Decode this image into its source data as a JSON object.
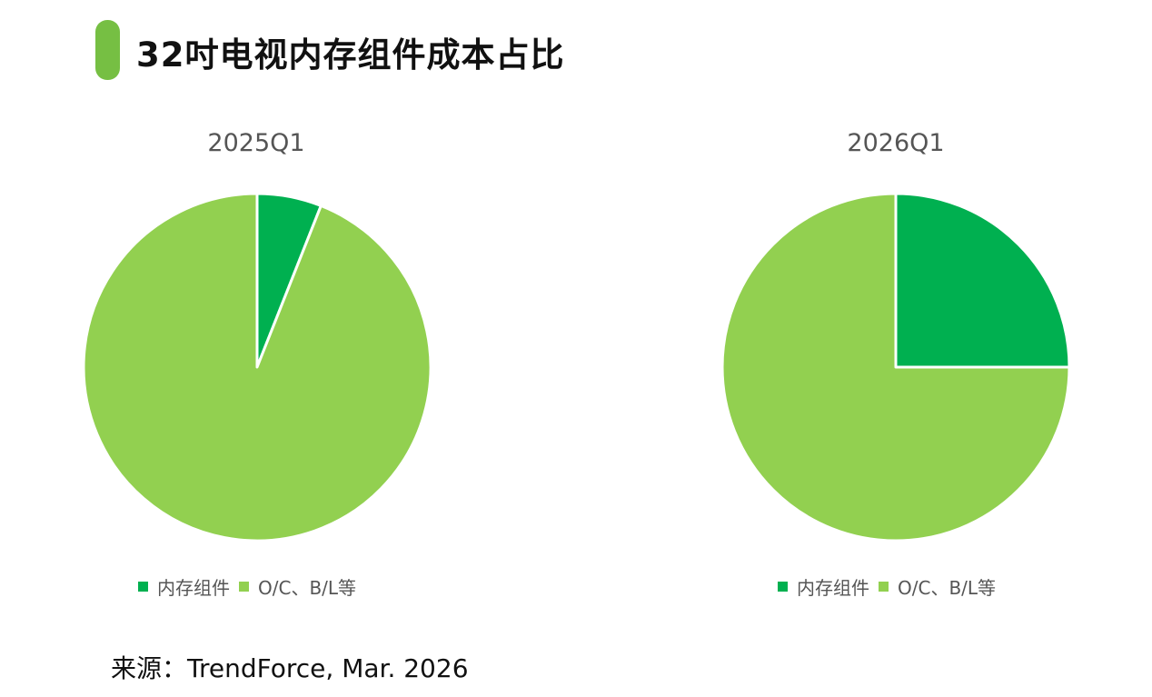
{
  "title": "32吋电视内存组件成本占比",
  "source": "来源：TrendForce, Mar. 2026",
  "colors": {
    "accent": "#76bf43",
    "memory": "#00b050",
    "other": "#92d050"
  },
  "legend": [
    {
      "label": "内存组件",
      "color": "#00b050"
    },
    {
      "label": "O/C、B/L等",
      "color": "#92d050"
    }
  ],
  "chart_data": [
    {
      "type": "pie",
      "title": "2025Q1",
      "categories": [
        "内存组件",
        "O/C、B/L等"
      ],
      "values": [
        6,
        94
      ],
      "unit": "%",
      "legend_position": "bottom"
    },
    {
      "type": "pie",
      "title": "2026Q1",
      "categories": [
        "内存组件",
        "O/C、B/L等"
      ],
      "values": [
        25,
        75
      ],
      "unit": "%",
      "legend_position": "bottom"
    }
  ]
}
